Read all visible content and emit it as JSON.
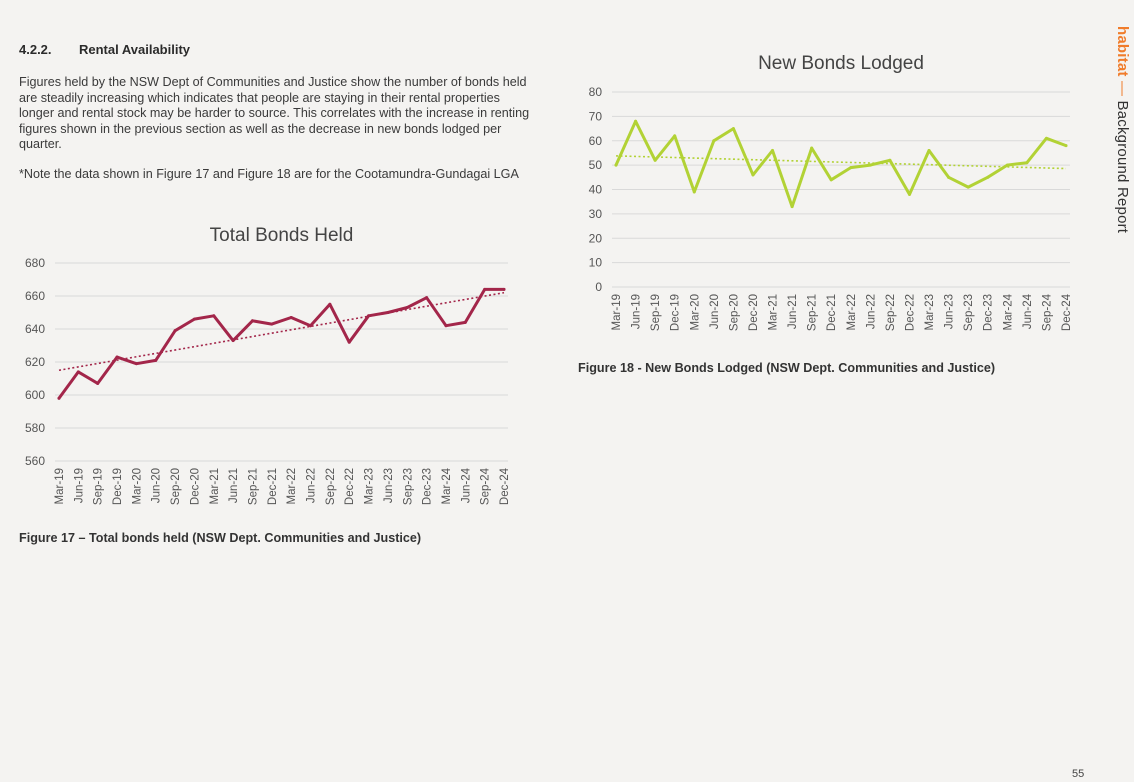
{
  "section": {
    "number": "4.2.2.",
    "title": "Rental Availability"
  },
  "paragraphs": [
    "Figures held by the NSW Dept of Communities and Justice show the number of bonds held are steadily increasing which indicates that people are staying in their rental properties longer and rental stock may be harder to source. This correlates with the increase in renting figures shown in the previous section as well as the decrease in new bonds lodged per quarter.",
    "*Note the data shown in Figure 17 and Figure 18 are for the Cootamundra-Gundagai LGA"
  ],
  "captions": {
    "fig17": "Figure 17 – Total bonds held (NSW Dept. Communities and Justice)",
    "fig18": "Figure 18 - New Bonds Lodged (NSW Dept. Communities and Justice)"
  },
  "side_header": {
    "brand": "habitat",
    "separator": "—",
    "title": "Background Report"
  },
  "page_number": "55",
  "colors": {
    "bonds_held_line": "#a3264a",
    "new_bonds_line": "#b2d235",
    "grid": "#d9d9d9",
    "brand_orange": "#f07c2b"
  },
  "chart_data": [
    {
      "type": "line",
      "title": "Total Bonds Held",
      "categories": [
        "Mar-19",
        "Jun-19",
        "Sep-19",
        "Dec-19",
        "Mar-20",
        "Jun-20",
        "Sep-20",
        "Dec-20",
        "Mar-21",
        "Jun-21",
        "Sep-21",
        "Dec-21",
        "Mar-22",
        "Jun-22",
        "Sep-22",
        "Dec-22",
        "Mar-23",
        "Jun-23",
        "Sep-23",
        "Dec-23",
        "Mar-24",
        "Jun-24",
        "Sep-24",
        "Dec-24"
      ],
      "values": [
        598,
        614,
        607,
        623,
        619,
        621,
        639,
        646,
        648,
        633,
        645,
        643,
        647,
        642,
        655,
        632,
        648,
        650,
        653,
        659,
        642,
        644,
        664,
        664
      ],
      "trendline": {
        "type": "linear",
        "style": "dotted",
        "start": 615,
        "end": 662
      },
      "ylim": [
        560,
        680
      ],
      "yticks": [
        560,
        580,
        600,
        620,
        640,
        660,
        680
      ],
      "grid": true,
      "legend": false
    },
    {
      "type": "line",
      "title": "New Bonds Lodged",
      "categories": [
        "Mar-19",
        "Jun-19",
        "Sep-19",
        "Dec-19",
        "Mar-20",
        "Jun-20",
        "Sep-20",
        "Dec-20",
        "Mar-21",
        "Jun-21",
        "Sep-21",
        "Dec-21",
        "Mar-22",
        "Jun-22",
        "Sep-22",
        "Dec-22",
        "Mar-23",
        "Jun-23",
        "Sep-23",
        "Dec-23",
        "Mar-24",
        "Jun-24",
        "Sep-24",
        "Dec-24"
      ],
      "values": [
        50,
        68,
        52,
        62,
        39,
        60,
        65,
        46,
        56,
        33,
        57,
        44,
        49,
        50,
        52,
        38,
        56,
        45,
        41,
        45,
        50,
        51,
        61,
        58
      ],
      "trendline": {
        "type": "linear",
        "style": "dotted",
        "start": 53.8,
        "end": 48.6
      },
      "ylim": [
        0,
        80
      ],
      "yticks": [
        0,
        10,
        20,
        30,
        40,
        50,
        60,
        70,
        80
      ],
      "grid": true,
      "legend": false
    }
  ]
}
